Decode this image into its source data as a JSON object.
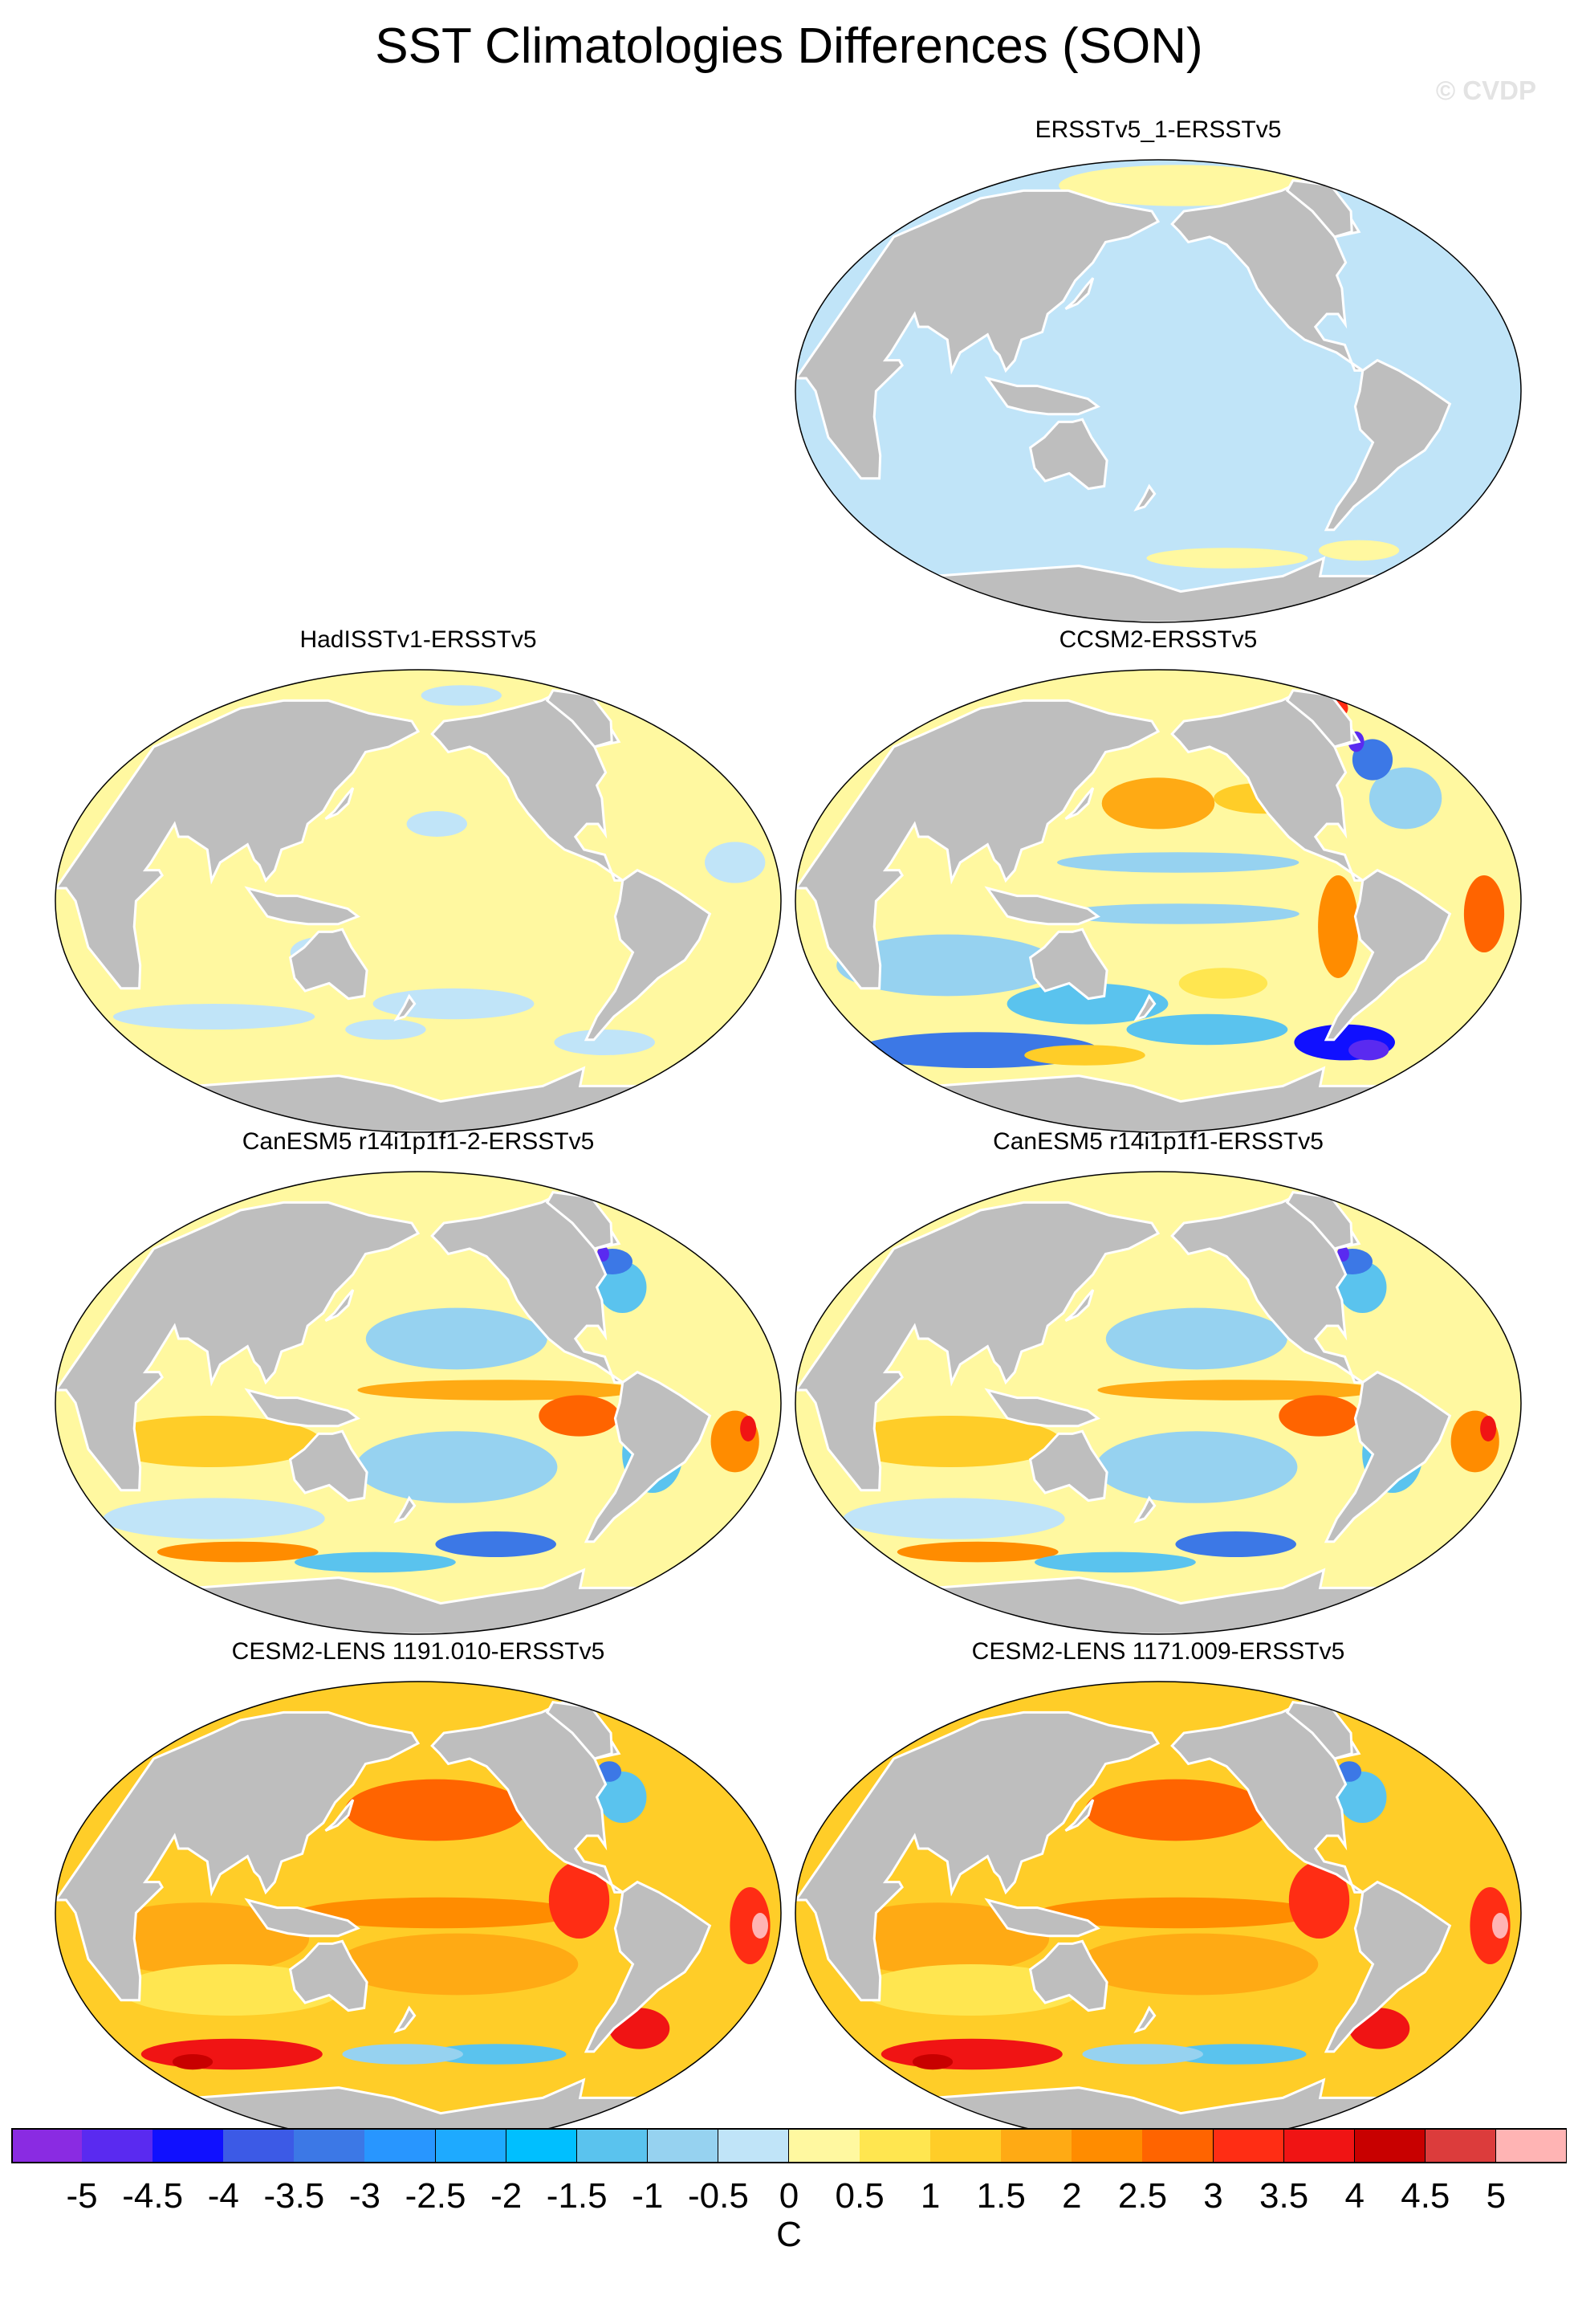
{
  "title": "SST Climatologies Differences (SON)",
  "watermark": "© CVDP",
  "panels": [
    {
      "title": "ERSSTv5_1-ERSSTv5",
      "pattern": "uniform-light-blue"
    },
    {
      "title": "HadISSTv1-ERSSTv5",
      "pattern": "mostly-light-yellow"
    },
    {
      "title": "CCSM2-ERSSTv5",
      "pattern": "mixed-cold-warm-bands"
    },
    {
      "title": "CanESM5 r14i1p1f1-2-ERSSTv5",
      "pattern": "mixed-warm-tropics"
    },
    {
      "title": "CanESM5 r14i1p1f1-ERSSTv5",
      "pattern": "mixed-warm-tropics"
    },
    {
      "title": "CESM2-LENS 1191.010-ERSSTv5",
      "pattern": "strong-warm"
    },
    {
      "title": "CESM2-LENS 1171.009-ERSSTv5",
      "pattern": "strong-warm"
    }
  ],
  "colorbar": {
    "units": "C",
    "colors": [
      "#8a2be2",
      "#5a2af0",
      "#1010ff",
      "#3c5ae6",
      "#3c78e6",
      "#2896ff",
      "#1eaaff",
      "#00bfff",
      "#5ac3ee",
      "#96d2f0",
      "#c0e4f8",
      "#fff8a0",
      "#ffe650",
      "#ffcd28",
      "#ffaa14",
      "#ff8c00",
      "#ff6400",
      "#ff2d14",
      "#f01414",
      "#c80000",
      "#dc3c3c",
      "#ffb4b4"
    ],
    "ticks": [
      "-5",
      "-4.5",
      "-4",
      "-3.5",
      "-3",
      "-2.5",
      "-2",
      "-1.5",
      "-1",
      "-0.5",
      "0",
      "0.5",
      "1",
      "1.5",
      "2",
      "2.5",
      "3",
      "3.5",
      "4",
      "4.5",
      "5"
    ]
  }
}
